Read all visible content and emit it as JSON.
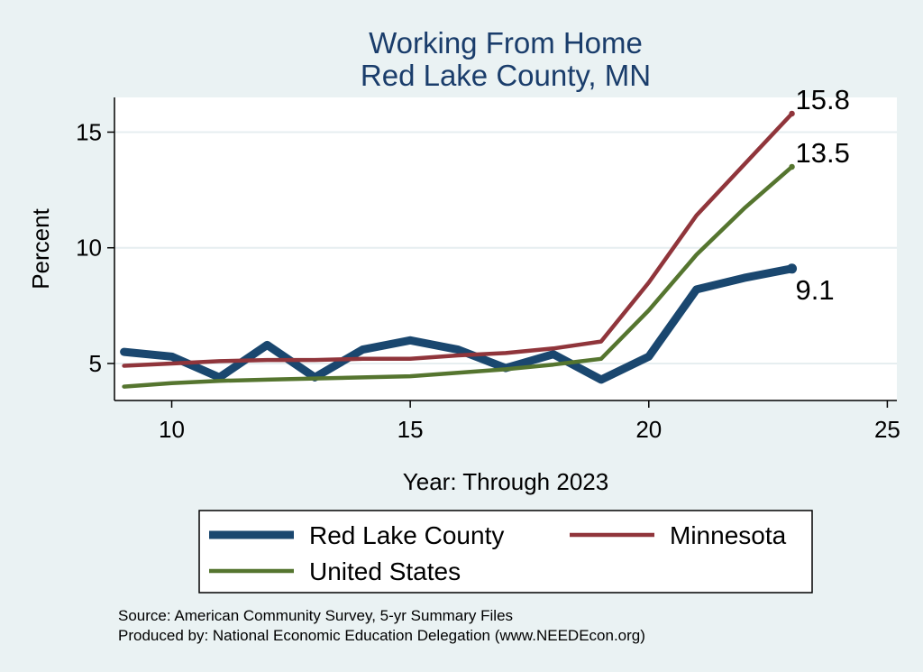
{
  "chart_data": {
    "type": "line",
    "title": "Working From Home",
    "subtitle": "Red Lake County, MN",
    "xlabel": "Year: Through 2023",
    "ylabel": "Percent",
    "xlim": [
      8.8,
      25.2
    ],
    "ylim": [
      3.4,
      16.5
    ],
    "xticks": [
      10,
      15,
      20,
      25
    ],
    "yticks": [
      5,
      10,
      15
    ],
    "grid": true,
    "legend_position": "bottom",
    "series": [
      {
        "name": "Red Lake County",
        "color": "#1a476f",
        "width": 9,
        "x": [
          9,
          10,
          11,
          12,
          13,
          14,
          15,
          16,
          17,
          18,
          19,
          20,
          21,
          22,
          23
        ],
        "values": [
          5.5,
          5.3,
          4.4,
          5.8,
          4.4,
          5.6,
          6.0,
          5.6,
          4.8,
          5.4,
          4.3,
          5.3,
          8.2,
          8.7,
          9.1
        ],
        "end_label": "9.1"
      },
      {
        "name": "Minnesota",
        "color": "#90353b",
        "width": 4.5,
        "x": [
          9,
          10,
          11,
          12,
          13,
          14,
          15,
          16,
          17,
          18,
          19,
          20,
          21,
          22,
          23
        ],
        "values": [
          4.9,
          5.0,
          5.1,
          5.15,
          5.15,
          5.2,
          5.2,
          5.35,
          5.45,
          5.65,
          5.95,
          8.5,
          11.4,
          13.6,
          15.8
        ],
        "end_label": "15.8"
      },
      {
        "name": "United States",
        "color": "#55752f",
        "width": 4.5,
        "x": [
          9,
          10,
          11,
          12,
          13,
          14,
          15,
          16,
          17,
          18,
          19,
          20,
          21,
          22,
          23
        ],
        "values": [
          4.0,
          4.15,
          4.25,
          4.3,
          4.35,
          4.4,
          4.45,
          4.6,
          4.75,
          4.95,
          5.2,
          7.3,
          9.7,
          11.7,
          13.5
        ],
        "end_label": "13.5"
      }
    ],
    "notes": [
      "Source: American Community Survey, 5-yr Summary Files",
      "Produced by: National Economic Education Delegation (www.NEEDEcon.org)"
    ]
  }
}
